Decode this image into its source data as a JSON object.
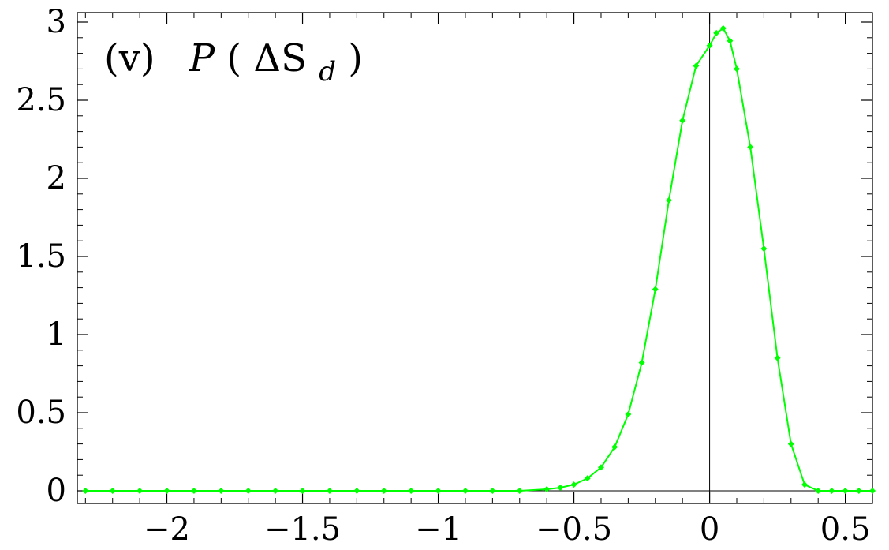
{
  "chart_data": {
    "type": "line",
    "title": {
      "panel": "(v)",
      "func": "P",
      "open": "(",
      "var": "ΔS",
      "sub": "d",
      "close": ")"
    },
    "xlabel": "",
    "ylabel": "",
    "xlim": [
      -2.33,
      0.6
    ],
    "ylim": [
      0,
      3
    ],
    "x_ticks": [
      -2,
      -1.5,
      -1,
      -0.5,
      0,
      0.5
    ],
    "x_tick_labels": [
      "−2",
      "−1.5",
      "−1",
      "−0.5",
      "0",
      "0.5"
    ],
    "y_ticks": [
      0,
      0.5,
      1,
      1.5,
      2,
      2.5,
      3
    ],
    "y_tick_labels": [
      "0",
      "0.5",
      "1",
      "1.5",
      "2",
      "2.5",
      "3"
    ],
    "zero_lines": true,
    "grid": false,
    "color": "#00ff00",
    "series": [
      {
        "x": [
          -2.3,
          -2.2,
          -2.1,
          -2.0,
          -1.9,
          -1.8,
          -1.7,
          -1.6,
          -1.5,
          -1.4,
          -1.3,
          -1.2,
          -1.1,
          -1.0,
          -0.9,
          -0.8,
          -0.7,
          -0.6,
          -0.55,
          -0.5,
          -0.45,
          -0.4,
          -0.35,
          -0.3,
          -0.25,
          -0.2,
          -0.15,
          -0.1,
          -0.05,
          0.0,
          0.025,
          0.05,
          0.075,
          0.1,
          0.15,
          0.2,
          0.25,
          0.3,
          0.35,
          0.4,
          0.45,
          0.5,
          0.55,
          0.6
        ],
        "y": [
          0,
          0,
          0,
          0,
          0,
          0,
          0,
          0,
          0,
          0,
          0,
          0,
          0,
          0,
          0,
          0,
          0,
          0.01,
          0.02,
          0.04,
          0.08,
          0.15,
          0.28,
          0.49,
          0.82,
          1.29,
          1.86,
          2.37,
          2.72,
          2.85,
          2.93,
          2.96,
          2.88,
          2.7,
          2.2,
          1.55,
          0.85,
          0.3,
          0.04,
          0.0,
          0,
          0,
          0,
          0
        ]
      }
    ]
  }
}
